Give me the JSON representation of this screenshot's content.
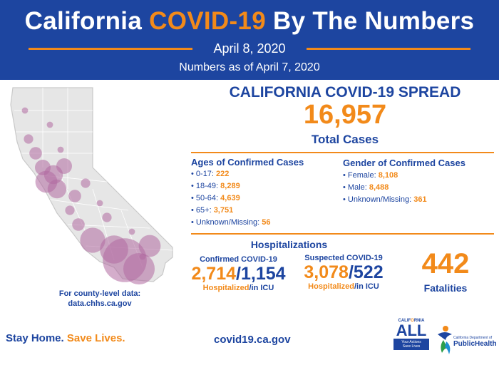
{
  "header": {
    "title_part1": "California",
    "title_highlight": "COVID-19",
    "title_part2": "By The Numbers",
    "date": "April 8, 2020",
    "as_of": "Numbers as of April 7, 2020"
  },
  "spread": {
    "title": "CALIFORNIA COVID-19 SPREAD",
    "total_cases": "16,957",
    "total_label": "Total Cases"
  },
  "ages": {
    "title": "Ages of Confirmed Cases",
    "items": [
      {
        "label": "• 0-17:",
        "value": "222"
      },
      {
        "label": "• 18-49:",
        "value": "8,289"
      },
      {
        "label": "• 50-64:",
        "value": "4,639"
      },
      {
        "label": "• 65+:",
        "value": "3,751"
      },
      {
        "label": "• Unknown/Missing:",
        "value": "56"
      }
    ]
  },
  "gender": {
    "title": "Gender of Confirmed Cases",
    "items": [
      {
        "label": "• Female:",
        "value": "8,108"
      },
      {
        "label": "• Male:",
        "value": "8,488"
      },
      {
        "label": "• Unknown/Missing:",
        "value": "361"
      }
    ]
  },
  "hospitalizations": {
    "title": "Hospitalizations",
    "confirmed": {
      "label": "Confirmed COVID-19",
      "hospitalized": "2,714",
      "separator": "/",
      "icu": "1,154",
      "foot_hosp": "Hospitalized",
      "foot_icu": "/in ICU"
    },
    "suspected": {
      "label": "Suspected COVID-19",
      "hospitalized": "3,078",
      "separator": "/",
      "icu": "522",
      "foot_hosp": "Hospitalized",
      "foot_icu": "/in ICU"
    }
  },
  "fatalities": {
    "value": "442",
    "label": "Fatalities"
  },
  "county_note": {
    "line1": "For county-level data:",
    "line2": "data.chhs.ca.gov"
  },
  "footer": {
    "stay_home": "Stay Home.",
    "save_lives": "Save Lives.",
    "url": "covid19.ca.gov"
  },
  "logos": {
    "ca_all_top_part1": "CALIF",
    "ca_all_top_highlight": "O",
    "ca_all_top_part2": "RNIA",
    "ca_all_word": "ALL",
    "ca_all_tag1": "Your Actions",
    "ca_all_tag2": "Save Lives",
    "cdph_line1": "California Department of",
    "cdph_line2": "PublicHealth"
  },
  "colors": {
    "brand_blue": "#1d45a0",
    "accent_orange": "#f28a1a",
    "bubble": "#b06aa0"
  },
  "map_bubble_sizes": [
    14,
    10,
    9,
    8,
    7,
    7,
    6,
    6,
    5,
    5,
    4,
    4,
    4,
    3,
    3,
    3,
    3,
    2,
    2,
    2,
    2,
    2,
    2
  ]
}
